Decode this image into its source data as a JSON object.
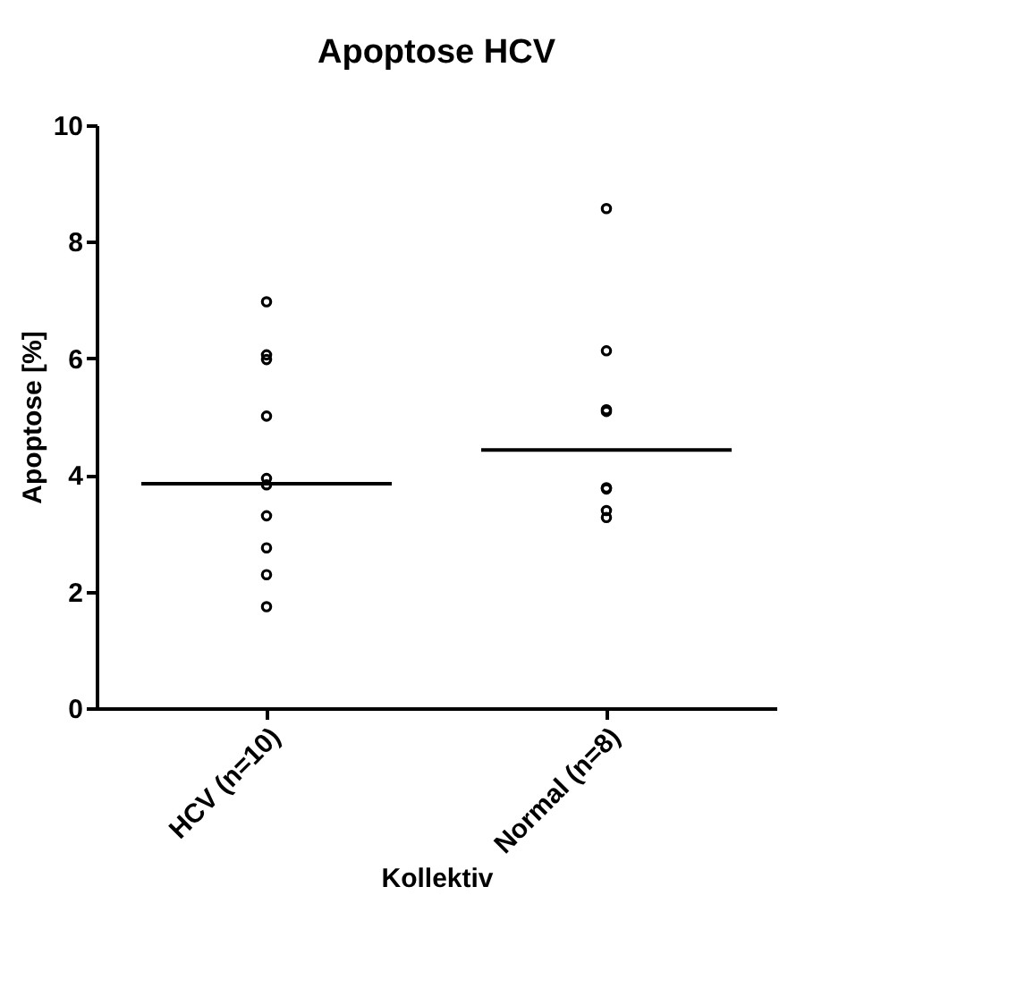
{
  "chart_data": {
    "type": "scatter",
    "title": "Apoptose HCV",
    "xlabel": "Kollektiv",
    "ylabel": "Apoptose [%]",
    "categories": [
      "HCV (n=10)",
      "Normal (n=8)"
    ],
    "series": [
      {
        "color": "#000000",
        "x": [
          "HCV (n=10)",
          "HCV (n=10)",
          "HCV (n=10)",
          "HCV (n=10)",
          "HCV (n=10)",
          "HCV (n=10)",
          "HCV (n=10)",
          "HCV (n=10)",
          "HCV (n=10)",
          "HCV (n=10)",
          "Normal (n=8)",
          "Normal (n=8)",
          "Normal (n=8)",
          "Normal (n=8)",
          "Normal (n=8)",
          "Normal (n=8)",
          "Normal (n=8)",
          "Normal (n=8)"
        ],
        "values": [
          6.97,
          6.06,
          5.98,
          5.01,
          3.94,
          3.83,
          3.3,
          2.75,
          2.29,
          1.74,
          8.57,
          6.13,
          5.12,
          5.09,
          3.78,
          3.76,
          3.39,
          3.27
        ]
      }
    ],
    "ref_lines": [
      {
        "axis": "y",
        "value": 3.85,
        "color": "#000000"
      },
      {
        "axis": "y",
        "value": 4.43,
        "color": "#000000"
      }
    ],
    "ylim": [
      0,
      10
    ],
    "yticks": [
      0,
      2,
      4,
      6,
      8,
      10
    ],
    "grid": false,
    "marker": "circle"
  }
}
